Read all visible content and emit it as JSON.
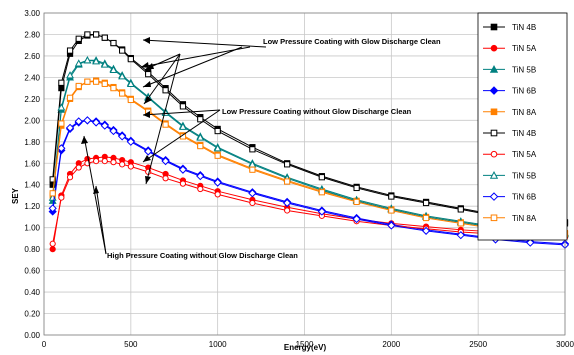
{
  "chart_data": {
    "type": "scatter",
    "xlabel": "Energy(eV)",
    "ylabel": "SEY",
    "xlim": [
      0,
      3000
    ],
    "ylim": [
      0,
      3.0
    ],
    "x_ticks": [
      "0",
      "500",
      "1000",
      "1500",
      "2000",
      "2500",
      "3000"
    ],
    "y_ticks": [
      "0.00",
      "0.20",
      "0.40",
      "0.60",
      "0.80",
      "1.00",
      "1.20",
      "1.40",
      "1.60",
      "1.80",
      "2.00",
      "2.20",
      "2.40",
      "2.60",
      "2.80",
      "3.00"
    ],
    "grid": true,
    "legend_position": "top-right",
    "annotations": [
      "Low Pressure Coating with Glow Discharge Clean",
      "Low Pressure Coating without Glow Discharge Clean",
      "High Pressure Coating without Glow Discharge Clean"
    ],
    "x": [
      50,
      100,
      150,
      200,
      250,
      300,
      350,
      400,
      450,
      500,
      600,
      700,
      800,
      900,
      1000,
      1200,
      1400,
      1600,
      1800,
      2000,
      2200,
      2400,
      2600,
      2800,
      3000
    ],
    "series": [
      {
        "name": "TiN 4B",
        "color": "#000000",
        "marker": "square",
        "filled": true,
        "values": [
          1.4,
          2.3,
          2.62,
          2.74,
          2.79,
          2.8,
          2.77,
          2.72,
          2.66,
          2.58,
          2.45,
          2.3,
          2.15,
          2.03,
          1.92,
          1.75,
          1.6,
          1.48,
          1.38,
          1.3,
          1.24,
          1.18,
          1.12,
          1.07,
          1.05
        ]
      },
      {
        "name": "TiN 5A",
        "color": "#ff0000",
        "marker": "circle",
        "filled": true,
        "values": [
          0.8,
          1.3,
          1.5,
          1.6,
          1.64,
          1.65,
          1.66,
          1.65,
          1.63,
          1.61,
          1.56,
          1.5,
          1.44,
          1.39,
          1.34,
          1.26,
          1.19,
          1.13,
          1.08,
          1.04,
          1.01,
          0.98,
          0.96,
          0.94,
          0.93
        ]
      },
      {
        "name": "TiN 5B",
        "color": "#008080",
        "marker": "triangle",
        "filled": true,
        "values": [
          1.25,
          2.1,
          2.4,
          2.52,
          2.56,
          2.56,
          2.53,
          2.48,
          2.42,
          2.35,
          2.22,
          2.08,
          1.95,
          1.85,
          1.75,
          1.6,
          1.47,
          1.36,
          1.26,
          1.18,
          1.11,
          1.06,
          1.01,
          0.97,
          0.95
        ]
      },
      {
        "name": "TiN 6B",
        "color": "#0000ff",
        "marker": "diamond",
        "filled": true,
        "values": [
          1.15,
          1.72,
          1.92,
          1.98,
          2.0,
          1.99,
          1.96,
          1.91,
          1.86,
          1.81,
          1.72,
          1.63,
          1.55,
          1.49,
          1.43,
          1.33,
          1.24,
          1.16,
          1.09,
          1.03,
          0.98,
          0.94,
          0.9,
          0.87,
          0.85
        ]
      },
      {
        "name": "TiN 8A",
        "color": "#ff8000",
        "marker": "square",
        "filled": true,
        "values": [
          1.3,
          1.95,
          2.2,
          2.31,
          2.36,
          2.37,
          2.35,
          2.31,
          2.26,
          2.2,
          2.09,
          1.97,
          1.86,
          1.77,
          1.68,
          1.55,
          1.44,
          1.34,
          1.25,
          1.17,
          1.1,
          1.05,
          1.0,
          0.97,
          0.95
        ]
      },
      {
        "name": "TiN 4B",
        "color": "#000000",
        "marker": "square",
        "filled": false,
        "values": [
          1.45,
          2.35,
          2.65,
          2.76,
          2.8,
          2.8,
          2.77,
          2.72,
          2.65,
          2.57,
          2.43,
          2.28,
          2.13,
          2.01,
          1.9,
          1.73,
          1.59,
          1.47,
          1.37,
          1.29,
          1.23,
          1.17,
          1.11,
          1.06,
          1.04
        ]
      },
      {
        "name": "TiN 5A",
        "color": "#ff0000",
        "marker": "circle",
        "filled": false,
        "values": [
          0.85,
          1.28,
          1.47,
          1.56,
          1.6,
          1.62,
          1.62,
          1.61,
          1.59,
          1.57,
          1.52,
          1.46,
          1.41,
          1.36,
          1.31,
          1.23,
          1.16,
          1.11,
          1.06,
          1.02,
          0.99,
          0.96,
          0.94,
          0.92,
          0.91
        ]
      },
      {
        "name": "TiN 5B",
        "color": "#008080",
        "marker": "triangle",
        "filled": false,
        "values": [
          1.28,
          2.12,
          2.42,
          2.53,
          2.56,
          2.55,
          2.52,
          2.47,
          2.41,
          2.34,
          2.21,
          2.07,
          1.94,
          1.84,
          1.74,
          1.59,
          1.46,
          1.35,
          1.25,
          1.17,
          1.1,
          1.05,
          1.0,
          0.96,
          0.94
        ]
      },
      {
        "name": "TiN 6B",
        "color": "#0000ff",
        "marker": "diamond",
        "filled": false,
        "values": [
          1.18,
          1.74,
          1.93,
          1.99,
          2.0,
          1.98,
          1.95,
          1.9,
          1.85,
          1.8,
          1.71,
          1.62,
          1.54,
          1.48,
          1.42,
          1.32,
          1.23,
          1.15,
          1.08,
          1.02,
          0.97,
          0.93,
          0.89,
          0.86,
          0.84
        ]
      },
      {
        "name": "TiN 8A",
        "color": "#ff8000",
        "marker": "square",
        "filled": false,
        "values": [
          1.32,
          1.97,
          2.21,
          2.32,
          2.36,
          2.36,
          2.34,
          2.3,
          2.25,
          2.19,
          2.08,
          1.96,
          1.85,
          1.76,
          1.67,
          1.54,
          1.43,
          1.33,
          1.24,
          1.16,
          1.09,
          1.04,
          0.99,
          0.96,
          0.94
        ]
      }
    ]
  }
}
